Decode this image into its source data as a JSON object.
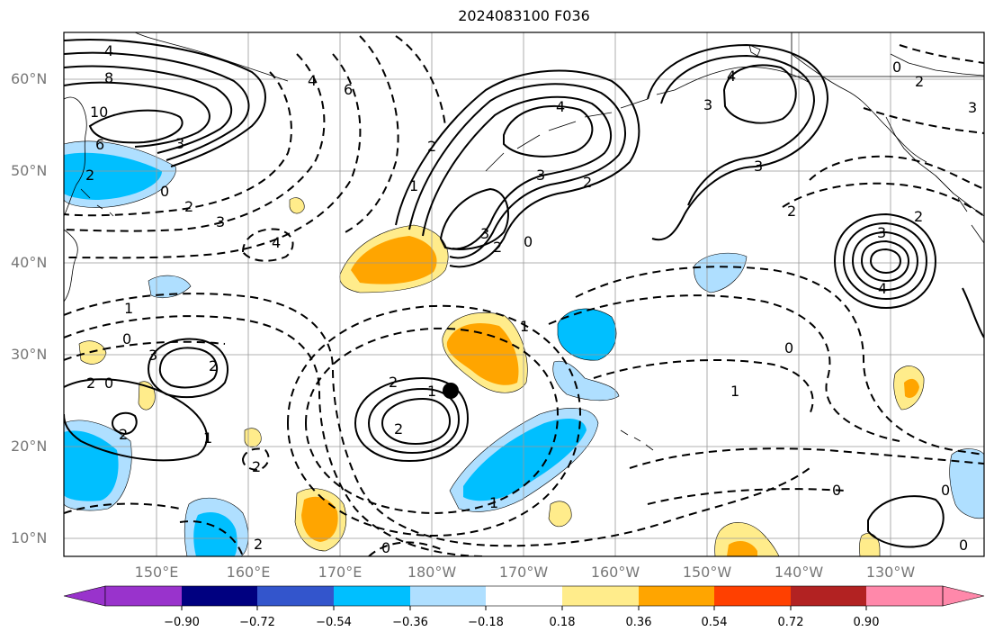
{
  "title": "2024083100 F036",
  "axes": {
    "lat_labels": [
      "60°N",
      "50°N",
      "40°N",
      "30°N",
      "20°N",
      "10°N"
    ],
    "lon_labels": [
      "150°E",
      "160°E",
      "170°E",
      "180°W",
      "170°W",
      "160°W",
      "150°W",
      "140°W",
      "130°W"
    ]
  },
  "colorbar": {
    "tick_labels": [
      "−0.90",
      "−0.72",
      "−0.54",
      "−0.36",
      "−0.18",
      "0.18",
      "0.36",
      "0.54",
      "0.72",
      "0.90"
    ],
    "colors": [
      "#9933cc",
      "#000080",
      "#3355cc",
      "#00bfff",
      "#afdfff",
      "#ffffff",
      "#ffec8b",
      "#ffa500",
      "#ff4000",
      "#b22222",
      "#ff88aa"
    ]
  },
  "contour_labels": [
    "4",
    "8",
    "10",
    "6",
    "3",
    "2",
    "0",
    "2",
    "3",
    "4",
    "4",
    "6",
    "3",
    "4",
    "2",
    "1",
    "2",
    "4",
    "3",
    "3",
    "2",
    "3",
    "3",
    "2",
    "0",
    "2",
    "0",
    "3",
    "4",
    "2",
    "3",
    "2",
    "1",
    "0",
    "2",
    "1",
    "2",
    "2",
    "0",
    "1",
    "2",
    "2",
    "2",
    "0",
    "1",
    "1",
    "1",
    "0",
    "0",
    "0",
    "0"
  ],
  "marker": {
    "name": "storm-center",
    "color": "#000000"
  }
}
